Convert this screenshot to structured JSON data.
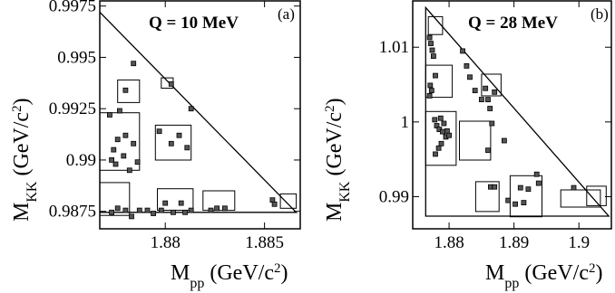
{
  "chart_data": [
    {
      "type": "scatter",
      "panel_label": "(a)",
      "title": "Q = 10 MeV",
      "xlabel": "M",
      "xlabel_sub": "pp",
      "xlabel_unit": " (GeV/c",
      "xlabel_sup": "2",
      "xlabel_close": ")",
      "ylabel": "M",
      "ylabel_sub": "KK",
      "ylabel_unit": " (GeV/c",
      "ylabel_sup": "2",
      "ylabel_close": ")",
      "xlim": [
        1.8767,
        1.8868
      ],
      "ylim": [
        0.98665,
        0.99775
      ],
      "xticks": [
        1.88,
        1.885
      ],
      "xtick_labels": [
        "1.88",
        "1.885"
      ],
      "yticks": [
        0.9875,
        0.99,
        0.9925,
        0.995,
        0.9975
      ],
      "ytick_labels": [
        "0.9875",
        "0.99",
        "0.9925",
        "0.995",
        "0.9975"
      ],
      "boundary": [
        [
          1.8766,
          0.9973
        ],
        [
          1.8766,
          0.98745
        ],
        [
          1.8866,
          0.98745
        ]
      ],
      "points": [
        [
          1.8772,
          0.9922
        ],
        [
          1.8777,
          0.9924
        ],
        [
          1.878,
          0.9912
        ],
        [
          1.8776,
          0.991
        ],
        [
          1.8784,
          0.9908
        ],
        [
          1.8774,
          0.9905
        ],
        [
          1.8779,
          0.9902
        ],
        [
          1.8775,
          0.9898
        ],
        [
          1.8773,
          0.99
        ],
        [
          1.8786,
          0.9899
        ],
        [
          1.8782,
          0.9895
        ],
        [
          1.8784,
          0.9947
        ],
        [
          1.878,
          0.9934
        ],
        [
          1.8803,
          0.9937
        ],
        [
          1.8813,
          0.9925
        ],
        [
          1.8797,
          0.9914
        ],
        [
          1.8807,
          0.9912
        ],
        [
          1.8803,
          0.9908
        ],
        [
          1.8811,
          0.9906
        ],
        [
          1.88,
          0.9879
        ],
        [
          1.8808,
          0.9879
        ],
        [
          1.8798,
          0.98755
        ],
        [
          1.8787,
          0.98755
        ],
        [
          1.8791,
          0.98755
        ],
        [
          1.8794,
          0.9874
        ],
        [
          1.8804,
          0.98745
        ],
        [
          1.881,
          0.98745
        ],
        [
          1.8813,
          0.98755
        ],
        [
          1.8826,
          0.98765
        ],
        [
          1.8823,
          0.98755
        ],
        [
          1.883,
          0.98765
        ],
        [
          1.8854,
          0.98805
        ],
        [
          1.8855,
          0.98785
        ],
        [
          1.8776,
          0.98765
        ],
        [
          1.8773,
          0.98745
        ],
        [
          1.878,
          0.98755
        ],
        [
          1.8783,
          0.98725
        ]
      ],
      "boxes": [
        [
          1.8776,
          0.9928,
          1.8787,
          0.9939
        ],
        [
          1.8798,
          0.9935,
          1.8804,
          0.994
        ],
        [
          1.8766,
          0.9895,
          1.8787,
          0.9923
        ],
        [
          1.8795,
          0.99,
          1.8813,
          0.9917
        ],
        [
          1.8766,
          0.9873,
          1.8782,
          0.9889
        ],
        [
          1.8796,
          0.98755,
          1.8814,
          0.9886
        ],
        [
          1.8819,
          0.98755,
          1.8835,
          0.9885
        ],
        [
          1.8858,
          0.98765,
          1.8866,
          0.98835
        ]
      ]
    },
    {
      "type": "scatter",
      "panel_label": "(b)",
      "title": "Q = 28 MeV",
      "xlabel": "M",
      "xlabel_sub": "pp",
      "xlabel_unit": " (GeV/c",
      "xlabel_sup": "2",
      "xlabel_close": ")",
      "ylabel": "M",
      "ylabel_sub": "KK",
      "ylabel_unit": " (GeV/c",
      "ylabel_sup": "2",
      "ylabel_close": ")",
      "xlim": [
        1.8744,
        1.905
      ],
      "ylim": [
        0.9857,
        1.0162
      ],
      "xticks": [
        1.88,
        1.89,
        1.9
      ],
      "xtick_labels": [
        "1.88",
        "1.89",
        "1.9"
      ],
      "yticks": [
        0.99,
        1.0,
        1.01
      ],
      "ytick_labels": [
        "0.99",
        "1",
        "1.01"
      ],
      "boundary": [
        [
          1.8764,
          1.0153
        ],
        [
          1.8764,
          0.9874
        ],
        [
          1.9046,
          0.9874
        ]
      ],
      "points": [
        [
          1.877,
          1.0113
        ],
        [
          1.8772,
          1.0105
        ],
        [
          1.8774,
          1.0096
        ],
        [
          1.8776,
          1.0088
        ],
        [
          1.8779,
          1.0062
        ],
        [
          1.8771,
          1.0049
        ],
        [
          1.8773,
          1.0042
        ],
        [
          1.877,
          1.0035
        ],
        [
          1.8778,
          1.0003
        ],
        [
          1.8781,
          0.9995
        ],
        [
          1.8787,
          1.0005
        ],
        [
          1.8792,
          0.9998
        ],
        [
          1.8785,
          0.999
        ],
        [
          1.879,
          0.9987
        ],
        [
          1.8795,
          0.998
        ],
        [
          1.8788,
          0.9971
        ],
        [
          1.8784,
          0.9965
        ],
        [
          1.8797,
          0.9988
        ],
        [
          1.88,
          0.9982
        ],
        [
          1.8779,
          0.9957
        ],
        [
          1.8821,
          1.0095
        ],
        [
          1.8827,
          1.0075
        ],
        [
          1.8832,
          1.006
        ],
        [
          1.884,
          1.0042
        ],
        [
          1.885,
          1.003
        ],
        [
          1.886,
          1.003
        ],
        [
          1.8856,
          1.0045
        ],
        [
          1.887,
          1.004
        ],
        [
          1.8863,
          1.0018
        ],
        [
          1.8866,
          0.9998
        ],
        [
          1.8885,
          0.9975
        ],
        [
          1.886,
          0.9962
        ],
        [
          1.8864,
          0.9913
        ],
        [
          1.887,
          0.9913
        ],
        [
          1.8891,
          0.9895
        ],
        [
          1.8902,
          0.989
        ],
        [
          1.891,
          0.9912
        ],
        [
          1.8915,
          0.9892
        ],
        [
          1.8922,
          0.991
        ],
        [
          1.8935,
          0.993
        ],
        [
          1.8938,
          0.9918
        ],
        [
          1.8992,
          0.9912
        ]
      ],
      "boxes": [
        [
          1.8768,
          1.0117,
          1.879,
          1.0141
        ],
        [
          1.8764,
          1.0033,
          1.8805,
          1.0076
        ],
        [
          1.885,
          1.0035,
          1.888,
          1.0064
        ],
        [
          1.8764,
          0.9942,
          1.8811,
          1.0014
        ],
        [
          1.8816,
          0.9949,
          1.8864,
          1.0001
        ],
        [
          1.8841,
          0.988,
          1.8877,
          0.992
        ],
        [
          1.8894,
          0.9873,
          1.8943,
          0.9928
        ],
        [
          1.8972,
          0.9886,
          1.9033,
          0.9909
        ],
        [
          1.9012,
          0.9888,
          1.9042,
          0.9914
        ]
      ]
    }
  ]
}
